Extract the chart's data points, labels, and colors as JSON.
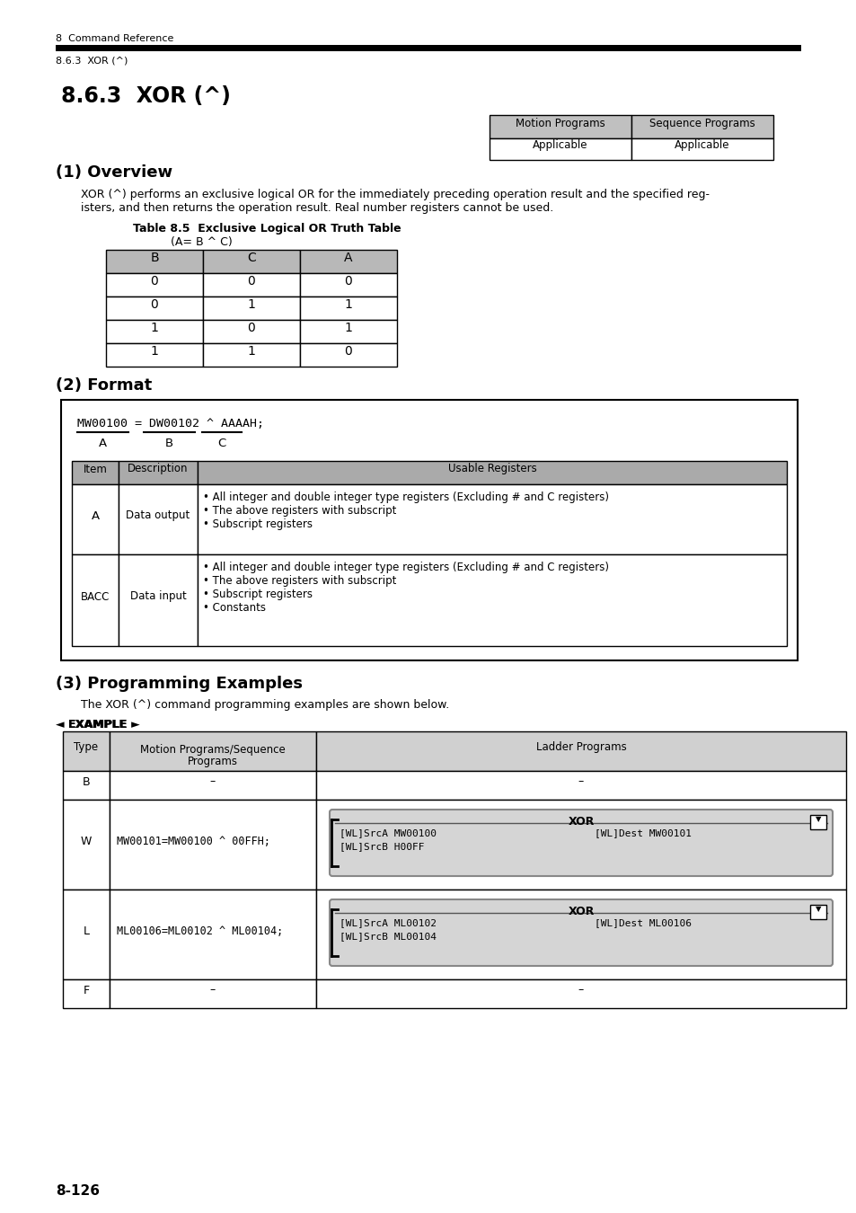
{
  "bg_color": "#ffffff",
  "header_text1": "8  Command Reference",
  "header_text2": "8.6.3  XOR (^)",
  "title": "8.6.3  XOR (^)",
  "section1": "(1) Overview",
  "section2": "(2) Format",
  "section3": "(3) Programming Examples",
  "ov_line1": "XOR (^) performs an exclusive logical OR for the immediately preceding operation result and the specified reg-",
  "ov_line2": "isters, and then returns the operation result. Real number registers cannot be used.",
  "table85_title1": "Table 8.5  Exclusive Logical OR Truth Table",
  "table85_title2": "(A= B ^ C)",
  "truth_headers": [
    "B",
    "C",
    "A"
  ],
  "truth_data": [
    [
      "0",
      "0",
      "0"
    ],
    [
      "0",
      "1",
      "1"
    ],
    [
      "1",
      "0",
      "1"
    ],
    [
      "1",
      "1",
      "0"
    ]
  ],
  "format_code": "MW00100 = DW00102 ^ AAAAH;",
  "prog_intro": "The XOR (^) command programming examples are shown below.",
  "page_number": "8-126",
  "gray_hdr": "#c0c0c0",
  "gray_light": "#d0d0d0",
  "gray_tbl": "#aaaaaa"
}
